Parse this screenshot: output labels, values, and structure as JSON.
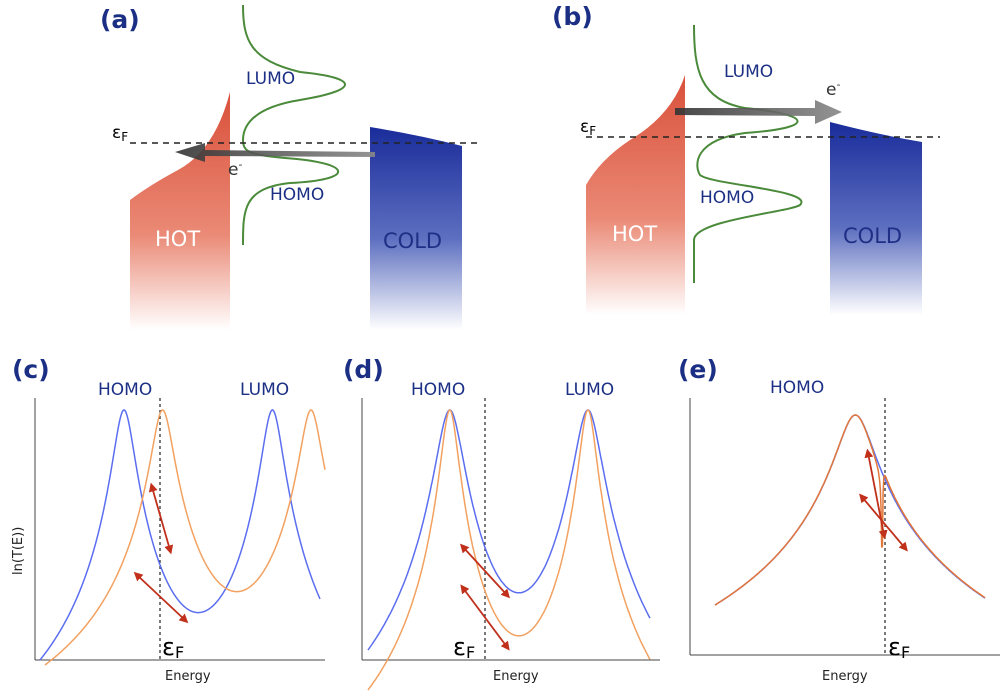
{
  "labels": {
    "a": "(a)",
    "b": "(b)",
    "c": "(c)",
    "d": "(d)",
    "e": "(e)",
    "homo": "HOMO",
    "lumo": "LUMO",
    "hot": "HOT",
    "cold": "COLD",
    "electron": "e⁻",
    "fermi": "εF",
    "fermi_base": "ε",
    "fermi_sub": "F",
    "xlabel": "Energy",
    "ylabel": "ln(T(E))"
  },
  "colors": {
    "hot": "#d9503a",
    "cold": "#1a2c9a",
    "orbital_curve": "#4a8a3a",
    "title_blue": "#1b2f85",
    "blue_curve": "#5b6ef0",
    "orange_curve": "#f2a160",
    "arrow_red": "#c0301b"
  },
  "chart_data": [
    {
      "panel": "(c)",
      "type": "line",
      "xlabel": "Energy",
      "ylabel": "ln(T(E))",
      "annotations": [
        "HOMO",
        "LUMO",
        "εF"
      ],
      "series": [
        {
          "color": "#5b6ef0",
          "peaks": [
            0.3,
            0.83
          ]
        },
        {
          "color": "#f2a160",
          "peaks": [
            0.42,
            0.95
          ]
        }
      ]
    },
    {
      "panel": "(d)",
      "type": "line",
      "xlabel": "Energy",
      "annotations": [
        "HOMO",
        "LUMO",
        "εF"
      ],
      "series": [
        {
          "color": "#5b6ef0",
          "peaks": [
            0.29,
            0.78
          ]
        },
        {
          "color": "#f2a160",
          "peaks": [
            0.29,
            0.78
          ]
        }
      ]
    },
    {
      "panel": "(e)",
      "type": "line",
      "xlabel": "Energy",
      "annotations": [
        "HOMO",
        "εF"
      ],
      "series": [
        {
          "color": "#5b6ef0",
          "peaks": [
            0.52
          ]
        },
        {
          "color": "#f2a160",
          "peaks": [
            0.52
          ],
          "feature": "Fano resonance near εF"
        }
      ]
    }
  ]
}
